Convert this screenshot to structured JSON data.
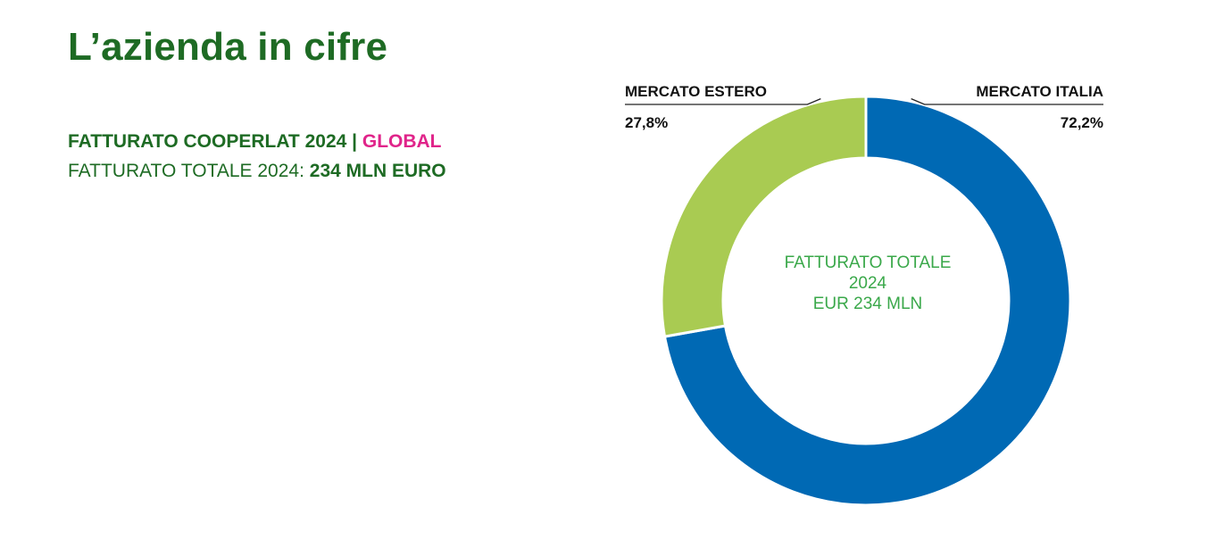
{
  "header": {
    "title": "L’azienda in cifre",
    "line1_text": "FATTURATO COOPERLAT 2024 | ",
    "line1_accent": "GLOBAL",
    "line2_text": "FATTURATO TOTALE 2024: ",
    "line2_value": "234 MLN EURO"
  },
  "colors": {
    "title_green": "#1e6b24",
    "accent_pink": "#e0248a",
    "center_text_green": "#3aa84a"
  },
  "chart_data": {
    "type": "pie",
    "donut": true,
    "categories": [
      "MERCATO ITALIA",
      "MERCATO ESTERO"
    ],
    "values": [
      72.2,
      27.8
    ],
    "value_labels": [
      "72,2%",
      "27,8%"
    ],
    "colors": [
      "#0069b4",
      "#a9cb52"
    ],
    "start": "top",
    "direction": "clockwise",
    "center_text": [
      "FATTURATO TOTALE",
      "2024",
      "EUR 234 MLN"
    ]
  }
}
